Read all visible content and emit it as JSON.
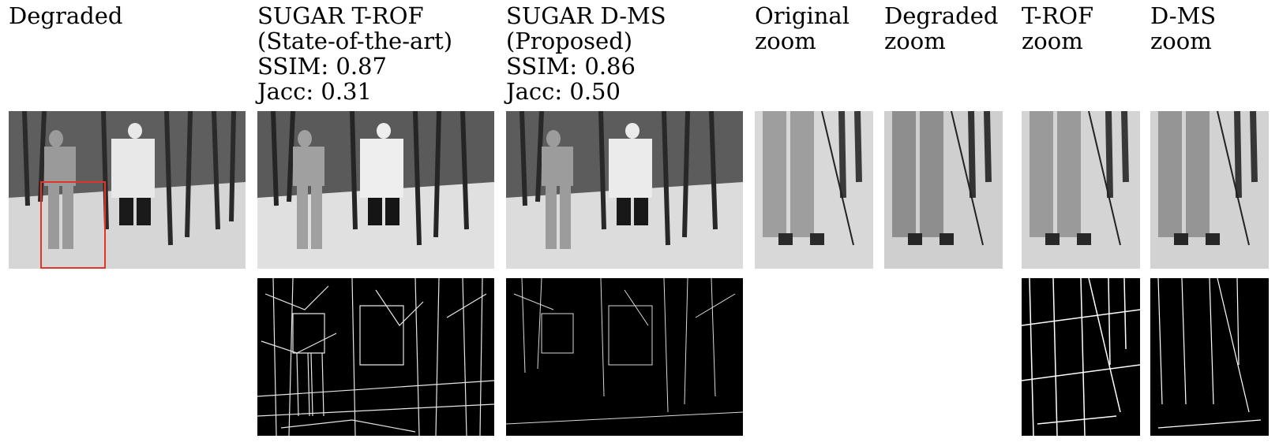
{
  "figure": {
    "columns": [
      {
        "id": "degraded",
        "title_lines": [
          "Degraded"
        ]
      },
      {
        "id": "t-rof",
        "title_lines": [
          "SUGAR T-ROF",
          "(State-of-the-art)",
          "SSIM: 0.87",
          "Jacc: 0.31"
        ]
      },
      {
        "id": "d-ms",
        "title_lines": [
          "SUGAR D-MS",
          "(Proposed)",
          "SSIM: 0.86",
          "Jacc: 0.50"
        ]
      },
      {
        "id": "original-zoom",
        "title_lines": [
          "Original",
          "zoom"
        ]
      },
      {
        "id": "degraded-zoom",
        "title_lines": [
          "Degraded",
          "zoom"
        ]
      },
      {
        "id": "t-rof-zoom",
        "title_lines": [
          "T-ROF",
          "zoom"
        ]
      },
      {
        "id": "d-ms-zoom",
        "title_lines": [
          "D-MS",
          "zoom"
        ]
      }
    ],
    "colors": {
      "zoom_box": "#e0352b",
      "edge_background": "#000000",
      "edge_lines": "#ffffff",
      "page": "#ffffff"
    }
  }
}
